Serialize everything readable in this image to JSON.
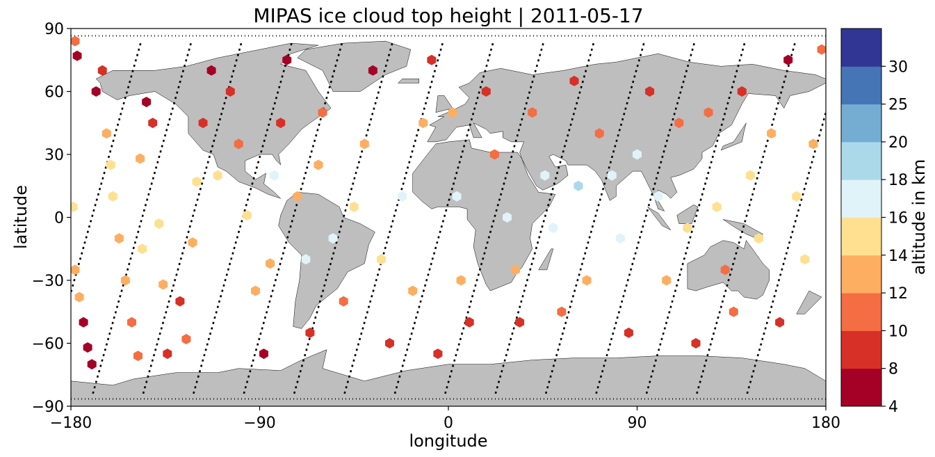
{
  "chart_data": {
    "type": "scatter",
    "title": "MIPAS ice cloud top height | 2011-05-17",
    "xlabel": "longitude",
    "ylabel": "latitude",
    "xlim": [
      -180,
      180
    ],
    "ylim": [
      -90,
      90
    ],
    "xticks": [
      -180,
      -90,
      0,
      90,
      180
    ],
    "yticks": [
      -90,
      -60,
      -30,
      0,
      30,
      60,
      90
    ],
    "xtick_labels": [
      "−180",
      "−90",
      "0",
      "90",
      "180"
    ],
    "ytick_labels": [
      "−90",
      "−60",
      "−30",
      "0",
      "30",
      "60",
      "90"
    ],
    "grid": false,
    "land_color": "#bebebe",
    "track_color": "#000000",
    "colorbar": {
      "label": "altitude in km",
      "boundaries": [
        4,
        8,
        10,
        12,
        14,
        16,
        18,
        20,
        25,
        30
      ],
      "tick_labels": [
        "4",
        "8",
        "10",
        "12",
        "14",
        "16",
        "18",
        "20",
        "25",
        "30"
      ],
      "colors": [
        "#a50026",
        "#d73027",
        "#f46d43",
        "#fdae61",
        "#fee090",
        "#e0f3f8",
        "#abd9e9",
        "#74add1",
        "#4575b4",
        "#313695"
      ]
    },
    "orbit_tracks_ascending_node_lon": [
      -170,
      -146,
      -122,
      -98,
      -74,
      -50,
      -26,
      -2,
      22,
      46,
      70,
      94,
      118,
      142,
      166
    ],
    "points": [
      {
        "lon": -178,
        "lat": 84,
        "alt": 10
      },
      {
        "lon": -177,
        "lat": 77,
        "alt": 7
      },
      {
        "lon": -179,
        "lat": 5,
        "alt": 15
      },
      {
        "lon": -178,
        "lat": -25,
        "alt": 13
      },
      {
        "lon": -176,
        "lat": -38,
        "alt": 12
      },
      {
        "lon": -174,
        "lat": -50,
        "alt": 7
      },
      {
        "lon": -172,
        "lat": -62,
        "alt": 7
      },
      {
        "lon": -170,
        "lat": -70,
        "alt": 6
      },
      {
        "lon": -168,
        "lat": 60,
        "alt": 7
      },
      {
        "lon": -165,
        "lat": 70,
        "alt": 8
      },
      {
        "lon": -163,
        "lat": 40,
        "alt": 12
      },
      {
        "lon": -161,
        "lat": 25,
        "alt": 15
      },
      {
        "lon": -160,
        "lat": 10,
        "alt": 15
      },
      {
        "lon": -157,
        "lat": -10,
        "alt": 12
      },
      {
        "lon": -154,
        "lat": -30,
        "alt": 12
      },
      {
        "lon": -151,
        "lat": -50,
        "alt": 10
      },
      {
        "lon": -148,
        "lat": -66,
        "alt": 11
      },
      {
        "lon": -147,
        "lat": 28,
        "alt": 13
      },
      {
        "lon": -146,
        "lat": -15,
        "alt": 14
      },
      {
        "lon": -144,
        "lat": 55,
        "alt": 6
      },
      {
        "lon": -141,
        "lat": 45,
        "alt": 8
      },
      {
        "lon": -138,
        "lat": -3,
        "alt": 15
      },
      {
        "lon": -136,
        "lat": -32,
        "alt": 12
      },
      {
        "lon": -134,
        "lat": -65,
        "alt": 9
      },
      {
        "lon": -128,
        "lat": -40,
        "alt": 9
      },
      {
        "lon": -125,
        "lat": -58,
        "alt": 10
      },
      {
        "lon": -122,
        "lat": -12,
        "alt": 12
      },
      {
        "lon": -120,
        "lat": 17,
        "alt": 14
      },
      {
        "lon": -117,
        "lat": 45,
        "alt": 8
      },
      {
        "lon": -113,
        "lat": 70,
        "alt": 7
      },
      {
        "lon": -110,
        "lat": 20,
        "alt": 14
      },
      {
        "lon": -104,
        "lat": 60,
        "alt": 9
      },
      {
        "lon": -100,
        "lat": 35,
        "alt": 10
      },
      {
        "lon": -96,
        "lat": 1,
        "alt": 15
      },
      {
        "lon": -92,
        "lat": -35,
        "alt": 12
      },
      {
        "lon": -88,
        "lat": -65,
        "alt": 7
      },
      {
        "lon": -85,
        "lat": -22,
        "alt": 13
      },
      {
        "lon": -83,
        "lat": 20,
        "alt": 16
      },
      {
        "lon": -80,
        "lat": 45,
        "alt": 9
      },
      {
        "lon": -77,
        "lat": 75,
        "alt": 6
      },
      {
        "lon": -72,
        "lat": 10,
        "alt": 13
      },
      {
        "lon": -68,
        "lat": -20,
        "alt": 16
      },
      {
        "lon": -66,
        "lat": -55,
        "alt": 8
      },
      {
        "lon": -62,
        "lat": 25,
        "alt": 12
      },
      {
        "lon": -60,
        "lat": 50,
        "alt": 11
      },
      {
        "lon": -55,
        "lat": -10,
        "alt": 17
      },
      {
        "lon": -50,
        "lat": -40,
        "alt": 11
      },
      {
        "lon": -45,
        "lat": 5,
        "alt": 14
      },
      {
        "lon": -40,
        "lat": 35,
        "alt": 13
      },
      {
        "lon": -36,
        "lat": 70,
        "alt": 7
      },
      {
        "lon": -32,
        "lat": -20,
        "alt": 14
      },
      {
        "lon": -28,
        "lat": -60,
        "alt": 8
      },
      {
        "lon": -22,
        "lat": 10,
        "alt": 17
      },
      {
        "lon": -17,
        "lat": -35,
        "alt": 12
      },
      {
        "lon": -12,
        "lat": 45,
        "alt": 12
      },
      {
        "lon": -8,
        "lat": 75,
        "alt": 9
      },
      {
        "lon": -5,
        "lat": -65,
        "alt": 9
      },
      {
        "lon": 2,
        "lat": 50,
        "alt": 13
      },
      {
        "lon": 4,
        "lat": 10,
        "alt": 17
      },
      {
        "lon": 6,
        "lat": -30,
        "alt": 12
      },
      {
        "lon": 10,
        "lat": -50,
        "alt": 9
      },
      {
        "lon": 18,
        "lat": 60,
        "alt": 9
      },
      {
        "lon": 22,
        "lat": 30,
        "alt": 11
      },
      {
        "lon": 28,
        "lat": 0,
        "alt": 17
      },
      {
        "lon": 32,
        "lat": -25,
        "alt": 13
      },
      {
        "lon": 34,
        "lat": -50,
        "alt": 9
      },
      {
        "lon": 40,
        "lat": 50,
        "alt": 11
      },
      {
        "lon": 46,
        "lat": 20,
        "alt": 17
      },
      {
        "lon": 50,
        "lat": -5,
        "alt": 17
      },
      {
        "lon": 54,
        "lat": -45,
        "alt": 11
      },
      {
        "lon": 60,
        "lat": 65,
        "alt": 8
      },
      {
        "lon": 62,
        "lat": 15,
        "alt": 19
      },
      {
        "lon": 66,
        "lat": -30,
        "alt": 12
      },
      {
        "lon": 72,
        "lat": 40,
        "alt": 10
      },
      {
        "lon": 78,
        "lat": 20,
        "alt": 17
      },
      {
        "lon": 82,
        "lat": -10,
        "alt": 17
      },
      {
        "lon": 86,
        "lat": -55,
        "alt": 8
      },
      {
        "lon": 90,
        "lat": 30,
        "alt": 17
      },
      {
        "lon": 96,
        "lat": 60,
        "alt": 9
      },
      {
        "lon": 100,
        "lat": 10,
        "alt": 16
      },
      {
        "lon": 104,
        "lat": -30,
        "alt": 13
      },
      {
        "lon": 110,
        "lat": 45,
        "alt": 11
      },
      {
        "lon": 114,
        "lat": -5,
        "alt": 15
      },
      {
        "lon": 118,
        "lat": -60,
        "alt": 8
      },
      {
        "lon": 124,
        "lat": 50,
        "alt": 10
      },
      {
        "lon": 128,
        "lat": 5,
        "alt": 15
      },
      {
        "lon": 132,
        "lat": -25,
        "alt": 11
      },
      {
        "lon": 136,
        "lat": -45,
        "alt": 11
      },
      {
        "lon": 140,
        "lat": 60,
        "alt": 8
      },
      {
        "lon": 144,
        "lat": 20,
        "alt": 15
      },
      {
        "lon": 148,
        "lat": -10,
        "alt": 14
      },
      {
        "lon": 154,
        "lat": 40,
        "alt": 13
      },
      {
        "lon": 158,
        "lat": -50,
        "alt": 9
      },
      {
        "lon": 162,
        "lat": 75,
        "alt": 7
      },
      {
        "lon": 166,
        "lat": 10,
        "alt": 15
      },
      {
        "lon": 170,
        "lat": -20,
        "alt": 14
      },
      {
        "lon": 174,
        "lat": 35,
        "alt": 13
      },
      {
        "lon": 178,
        "lat": 80,
        "alt": 10
      }
    ]
  }
}
